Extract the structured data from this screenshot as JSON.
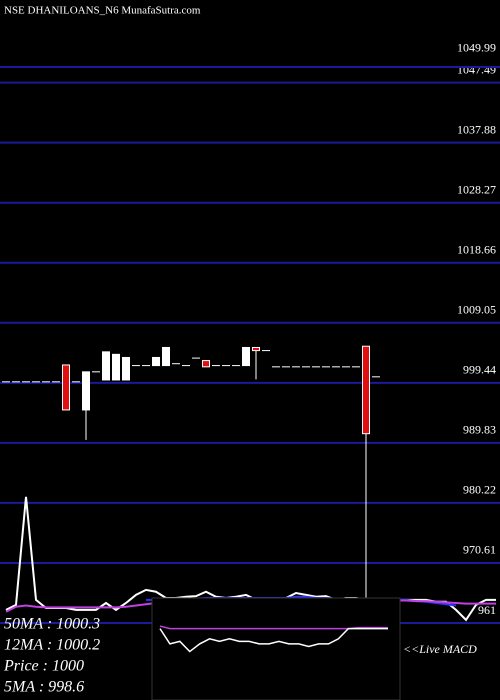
{
  "chart_data": {
    "type": "candlestick",
    "title": "NSE DHANILOANS_N6  MunafaSutra.com",
    "ylim": [
      961,
      1049.99
    ],
    "yticks": [
      1049.99,
      1047.49,
      1037.88,
      1028.27,
      1018.66,
      1009.05,
      999.44,
      989.83,
      980.22,
      970.61,
      961
    ],
    "grid": true,
    "grid_color": "#1a1a9a",
    "up_color": "#ffffff",
    "down_color": "#e01010",
    "open": [
      999.6,
      999.6,
      999.6,
      999.6,
      999.6,
      999.6,
      1002.3,
      999.6,
      995.1,
      1001.2,
      999.9,
      999.9,
      999.9,
      1002.2,
      1002.2,
      1002.2,
      1002.2,
      1002.5,
      1002.2,
      1003.4,
      1003.0,
      1002.2,
      1002.2,
      1002.2,
      1002.2,
      1005.1,
      1004.6,
      1002.0,
      1002.0,
      1002.0,
      1002.0,
      1002.0,
      1002.0,
      1002.0,
      1002.0,
      1002.0,
      1005.3,
      1000.4
    ],
    "high": [
      999.6,
      999.6,
      999.6,
      999.6,
      999.6,
      999.6,
      1002.3,
      999.6,
      1001.2,
      1001.2,
      1004.4,
      1004.0,
      1003.5,
      1002.2,
      1002.2,
      1003.5,
      1005.1,
      1002.5,
      1002.2,
      1003.4,
      1003.0,
      1002.2,
      1002.2,
      1002.2,
      1005.1,
      1005.1,
      1004.6,
      1002.0,
      1002.0,
      1002.0,
      1002.0,
      1002.0,
      1002.0,
      1002.0,
      1002.0,
      1002.0,
      1005.3,
      1000.4
    ],
    "low": [
      999.6,
      999.6,
      999.6,
      999.6,
      999.6,
      999.6,
      995.1,
      999.6,
      990.3,
      1001.2,
      999.9,
      999.9,
      999.9,
      1002.2,
      1002.2,
      1002.2,
      1002.2,
      1002.5,
      1002.2,
      1003.4,
      1002.0,
      1002.2,
      1002.2,
      1002.2,
      1002.2,
      1000.0,
      1004.6,
      1002.0,
      1002.0,
      1002.0,
      1002.0,
      1002.0,
      1002.0,
      1002.0,
      1002.0,
      1002.0,
      961.0,
      1000.4
    ],
    "close": [
      999.6,
      999.6,
      999.6,
      999.6,
      999.6,
      999.6,
      995.1,
      999.6,
      1001.2,
      1001.2,
      1004.4,
      1004.0,
      1003.5,
      1002.2,
      1002.2,
      1003.5,
      1005.1,
      1002.5,
      1002.2,
      1003.4,
      1002.0,
      1002.2,
      1002.2,
      1002.2,
      1005.1,
      1004.6,
      1004.6,
      1002.0,
      1002.0,
      1002.0,
      1002.0,
      1002.0,
      1002.0,
      1002.0,
      1002.0,
      1002.0,
      991.3,
      1000.4
    ],
    "lines": [
      {
        "color": "#ffffff",
        "values": [
          963.1,
          963.9,
          981.2,
          964.7,
          963.4,
          963.4,
          963.4,
          963.1,
          963.1,
          963.1,
          964.2,
          963.1,
          964.2,
          965.5,
          966.3,
          966.0,
          965.0,
          965.0,
          965.2,
          965.3,
          966.0,
          965.2,
          965.0,
          965.2,
          965.5,
          964.7,
          965.0,
          964.7,
          965.0,
          965.8,
          965.5,
          965.2,
          965.3,
          964.7,
          965.0,
          965.0,
          964.7,
          964.7,
          964.7,
          964.7,
          964.7,
          964.7,
          964.7,
          964.4,
          964.4,
          963.1,
          961.5,
          963.9,
          964.7,
          964.7
        ]
      },
      {
        "color": "#3030ff",
        "values": [
          null,
          null,
          null,
          null,
          null,
          null,
          null,
          null,
          null,
          null,
          null,
          null,
          null,
          null,
          964.7,
          964.7,
          964.7,
          964.7,
          964.9,
          964.9,
          965.0,
          965.0,
          965.0,
          965.0,
          965.0,
          965.0,
          965.0,
          965.0,
          965.0,
          965.2,
          965.2,
          965.0,
          965.0,
          964.9,
          964.9,
          964.9,
          964.7,
          964.7,
          964.7,
          964.7,
          964.7,
          964.5,
          964.4,
          964.2,
          964.0,
          963.8,
          null,
          null,
          null,
          null
        ]
      },
      {
        "color": "#c040e0",
        "values": [
          962.8,
          963.6,
          963.8,
          963.6,
          963.5,
          963.5,
          963.5,
          963.5,
          963.5,
          963.5,
          963.5,
          963.5,
          963.6,
          963.8,
          964.0,
          964.2,
          964.3,
          964.4,
          964.5,
          964.5,
          964.6,
          964.6,
          964.6,
          964.6,
          964.6,
          964.6,
          964.6,
          964.6,
          964.6,
          964.6,
          964.7,
          964.7,
          964.7,
          964.7,
          964.7,
          964.7,
          964.7,
          964.7,
          964.6,
          964.6,
          964.6,
          964.5,
          964.5,
          964.4,
          964.3,
          964.2,
          964.1,
          964.1,
          964.1,
          964.1
        ]
      }
    ],
    "macd": {
      "label": "<<Live MACD",
      "ylim": [
        -1,
        1
      ],
      "macd_color": "#ffffff",
      "signal_color": "#c040e0",
      "macd": [
        0.4,
        0.1,
        0.15,
        -0.05,
        0.1,
        0.2,
        0.15,
        0.2,
        0.15,
        0.15,
        0.1,
        0.1,
        0.15,
        0.1,
        0.1,
        0.05,
        0.1,
        0.1,
        0.2,
        0.4,
        0.4,
        0.4,
        0.4,
        0.4
      ],
      "signal": [
        0.45,
        0.4,
        0.4,
        0.4,
        0.4,
        0.4,
        0.4,
        0.4,
        0.4,
        0.4,
        0.4,
        0.4,
        0.4,
        0.4,
        0.4,
        0.4,
        0.4,
        0.4,
        0.4,
        0.4,
        0.42,
        0.42,
        0.42,
        0.42
      ]
    },
    "indicators": [
      "50MA : 1000.3",
      "12MA : 1000.2",
      "Price  : 1000",
      "5MA : 998.6"
    ]
  }
}
